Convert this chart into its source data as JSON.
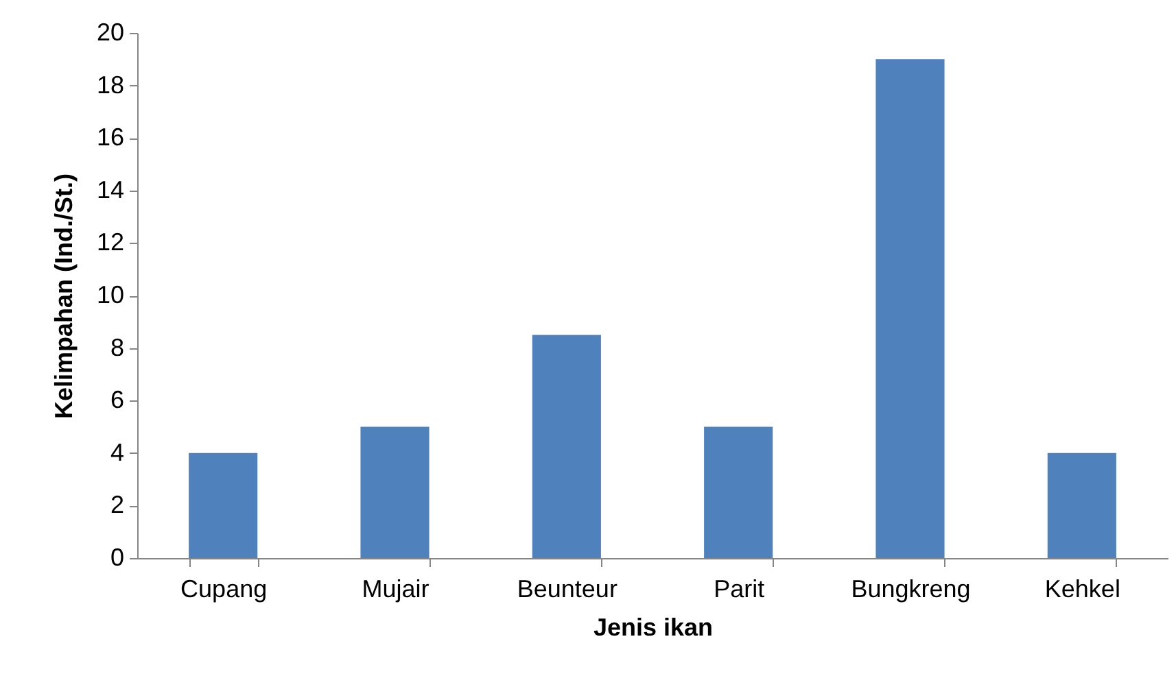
{
  "chart_data": {
    "type": "bar",
    "xlabel": "Jenis ikan",
    "ylabel": "Kelimpahan (Ind./St.)",
    "categories": [
      "Cupang",
      "Mujair",
      "Beunteur",
      "Parit",
      "Bungkreng",
      "Kehkel"
    ],
    "values": [
      4,
      5,
      8.5,
      5,
      19,
      4
    ],
    "color": "#4f81bd",
    "ylim": [
      0,
      20
    ],
    "yticks": [
      0,
      2,
      4,
      6,
      8,
      10,
      12,
      14,
      16,
      18,
      20
    ],
    "grid": false
  }
}
